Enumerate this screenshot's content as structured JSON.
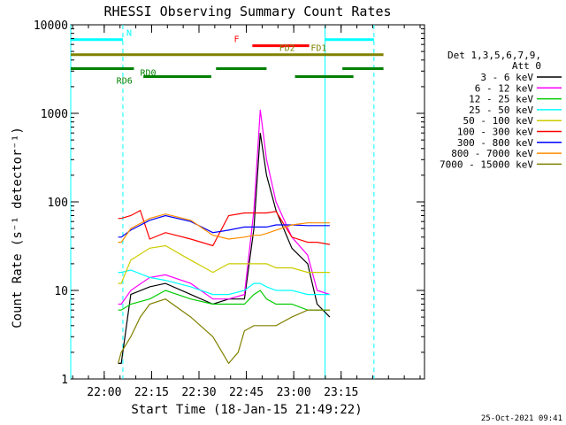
{
  "chart_data": {
    "type": "line",
    "title": "RHESSI Observing Summary Count Rates",
    "xlabel": "Start Time (18-Jan-15 21:49:22)",
    "ylabel": "Count Rate (s⁻¹ detector⁻¹)",
    "timestamp": "25-Oct-2021 09:41",
    "x_unit": "minutes after 21:49:22",
    "xlim": [
      0,
      112
    ],
    "ylim": [
      1,
      10000
    ],
    "y_scale": "log",
    "xticks": [
      {
        "x": 10.6,
        "label": "22:00"
      },
      {
        "x": 25.6,
        "label": "22:15"
      },
      {
        "x": 40.6,
        "label": "22:30"
      },
      {
        "x": 55.6,
        "label": "22:45"
      },
      {
        "x": 70.6,
        "label": "23:00"
      },
      {
        "x": 85.6,
        "label": "23:15"
      }
    ],
    "yticks": [
      {
        "y": 1,
        "label": "1"
      },
      {
        "y": 10,
        "label": "10"
      },
      {
        "y": 100,
        "label": "100"
      },
      {
        "y": 1000,
        "label": "1000"
      },
      {
        "y": 10000,
        "label": "10000"
      }
    ],
    "legend": {
      "header": [
        "Det 1,3,5,6,7,9,",
        "Att 0"
      ],
      "placement": "right"
    },
    "series": [
      {
        "name": "3 - 6 keV",
        "color": "#000000",
        "points": [
          [
            15,
            1.5
          ],
          [
            16,
            1.5
          ],
          [
            19,
            9
          ],
          [
            25,
            11
          ],
          [
            30,
            12
          ],
          [
            38,
            9
          ],
          [
            45,
            7
          ],
          [
            50,
            8
          ],
          [
            55,
            8
          ],
          [
            58,
            50
          ],
          [
            60,
            600
          ],
          [
            62,
            200
          ],
          [
            65,
            80
          ],
          [
            70,
            30
          ],
          [
            75,
            20
          ],
          [
            78,
            7
          ],
          [
            82,
            5
          ]
        ]
      },
      {
        "name": "6 - 12 keV",
        "color": "#ff00ff",
        "points": [
          [
            15,
            7
          ],
          [
            16,
            7
          ],
          [
            19,
            10
          ],
          [
            25,
            14
          ],
          [
            30,
            15
          ],
          [
            38,
            12
          ],
          [
            45,
            8
          ],
          [
            50,
            8
          ],
          [
            55,
            9
          ],
          [
            58,
            80
          ],
          [
            60,
            1100
          ],
          [
            62,
            300
          ],
          [
            65,
            100
          ],
          [
            70,
            40
          ],
          [
            75,
            25
          ],
          [
            78,
            10
          ],
          [
            82,
            9
          ]
        ]
      },
      {
        "name": "12 - 25 keV",
        "color": "#00cc00",
        "points": [
          [
            15,
            6
          ],
          [
            16,
            6
          ],
          [
            19,
            7
          ],
          [
            25,
            8
          ],
          [
            30,
            10
          ],
          [
            38,
            8
          ],
          [
            45,
            7
          ],
          [
            50,
            7
          ],
          [
            55,
            7
          ],
          [
            58,
            9
          ],
          [
            60,
            10
          ],
          [
            62,
            8
          ],
          [
            65,
            7
          ],
          [
            70,
            7
          ],
          [
            75,
            6
          ],
          [
            78,
            6
          ],
          [
            82,
            6
          ]
        ]
      },
      {
        "name": "25 - 50 keV",
        "color": "#00ffff",
        "points": [
          [
            15,
            16
          ],
          [
            16,
            16
          ],
          [
            19,
            17
          ],
          [
            25,
            14
          ],
          [
            30,
            13
          ],
          [
            38,
            11
          ],
          [
            45,
            9
          ],
          [
            50,
            9
          ],
          [
            55,
            10
          ],
          [
            58,
            12
          ],
          [
            60,
            12
          ],
          [
            62,
            11
          ],
          [
            65,
            10
          ],
          [
            70,
            10
          ],
          [
            75,
            9
          ],
          [
            78,
            9
          ],
          [
            82,
            9
          ]
        ]
      },
      {
        "name": "50 - 100 keV",
        "color": "#cccc00",
        "points": [
          [
            15,
            12
          ],
          [
            16,
            12
          ],
          [
            19,
            22
          ],
          [
            25,
            30
          ],
          [
            30,
            32
          ],
          [
            38,
            22
          ],
          [
            45,
            16
          ],
          [
            50,
            20
          ],
          [
            55,
            20
          ],
          [
            58,
            20
          ],
          [
            60,
            20
          ],
          [
            62,
            20
          ],
          [
            65,
            18
          ],
          [
            70,
            18
          ],
          [
            75,
            16
          ],
          [
            78,
            16
          ],
          [
            82,
            16
          ]
        ]
      },
      {
        "name": "100 - 300 keV",
        "color": "#ff0000",
        "points": [
          [
            15,
            65
          ],
          [
            16,
            65
          ],
          [
            19,
            70
          ],
          [
            22,
            80
          ],
          [
            25,
            38
          ],
          [
            30,
            45
          ],
          [
            38,
            38
          ],
          [
            45,
            32
          ],
          [
            50,
            70
          ],
          [
            55,
            75
          ],
          [
            58,
            75
          ],
          [
            60,
            75
          ],
          [
            62,
            75
          ],
          [
            65,
            78
          ],
          [
            70,
            40
          ],
          [
            75,
            35
          ],
          [
            78,
            35
          ],
          [
            82,
            33
          ]
        ]
      },
      {
        "name": "300 - 800 keV",
        "color": "#0000ff",
        "points": [
          [
            15,
            40
          ],
          [
            16,
            40
          ],
          [
            19,
            48
          ],
          [
            25,
            62
          ],
          [
            30,
            70
          ],
          [
            38,
            60
          ],
          [
            45,
            45
          ],
          [
            50,
            48
          ],
          [
            55,
            52
          ],
          [
            58,
            52
          ],
          [
            60,
            52
          ],
          [
            62,
            52
          ],
          [
            65,
            55
          ],
          [
            70,
            55
          ],
          [
            75,
            54
          ],
          [
            78,
            54
          ],
          [
            82,
            54
          ]
        ]
      },
      {
        "name": "800 - 7000 keV",
        "color": "#ff8c00",
        "points": [
          [
            15,
            35
          ],
          [
            16,
            35
          ],
          [
            19,
            50
          ],
          [
            25,
            65
          ],
          [
            30,
            73
          ],
          [
            38,
            62
          ],
          [
            45,
            42
          ],
          [
            50,
            38
          ],
          [
            55,
            40
          ],
          [
            58,
            42
          ],
          [
            60,
            42
          ],
          [
            62,
            44
          ],
          [
            65,
            48
          ],
          [
            70,
            55
          ],
          [
            75,
            58
          ],
          [
            78,
            58
          ],
          [
            82,
            58
          ]
        ]
      },
      {
        "name": "7000 - 15000 keV",
        "color": "#808000",
        "points": [
          [
            15,
            1.5
          ],
          [
            16,
            2
          ],
          [
            19,
            3
          ],
          [
            22,
            5
          ],
          [
            25,
            7
          ],
          [
            30,
            8
          ],
          [
            38,
            5
          ],
          [
            45,
            3
          ],
          [
            50,
            1.5
          ],
          [
            53,
            2
          ],
          [
            55,
            3.5
          ],
          [
            58,
            4
          ],
          [
            60,
            4
          ],
          [
            62,
            4
          ],
          [
            65,
            4
          ],
          [
            70,
            5
          ],
          [
            75,
            6
          ],
          [
            78,
            6
          ],
          [
            82,
            6
          ]
        ]
      }
    ],
    "annotations": {
      "vlines_solid": [
        {
          "x": 0,
          "color": "#00ffff"
        },
        {
          "x": 80.5,
          "color": "#00ffff"
        }
      ],
      "vlines_dashed": [
        {
          "x": 16.5,
          "color": "#00ffff"
        },
        {
          "x": 96,
          "color": "#00ffff"
        }
      ],
      "segments": [
        {
          "label": "N",
          "color": "#00ffff",
          "y": 6800,
          "from": 0,
          "to": 16.5,
          "label_x": 18.5
        },
        {
          "label": "",
          "color": "#00ffff",
          "y": 6800,
          "from": 80.5,
          "to": 96,
          "label_x": null
        },
        {
          "label": "F",
          "color": "#ff0000",
          "y": 5800,
          "from": 57.5,
          "to": 75.5,
          "label_x": 52.5
        },
        {
          "label": "FD2",
          "color": "#808000",
          "y": 4600,
          "from": 0,
          "to": 99,
          "label_x": 68.5
        },
        {
          "label": "FD1",
          "color": "#808000",
          "y": 4600,
          "from": 0,
          "to": 0,
          "label_x": 78.5
        },
        {
          "label": "RD0",
          "color": "#008000",
          "y": 3200,
          "from": 0,
          "to": 20,
          "label_x": 24.5
        },
        {
          "label": "",
          "color": "#008000",
          "y": 3200,
          "from": 46,
          "to": 62,
          "label_x": null
        },
        {
          "label": "",
          "color": "#008000",
          "y": 3200,
          "from": 86,
          "to": 99,
          "label_x": null
        },
        {
          "label": "RD6",
          "color": "#008000",
          "y": 2600,
          "from": 23,
          "to": 44.5,
          "label_x": 17
        },
        {
          "label": "",
          "color": "#008000",
          "y": 2600,
          "from": 71,
          "to": 89.5,
          "label_x": null
        }
      ]
    }
  }
}
